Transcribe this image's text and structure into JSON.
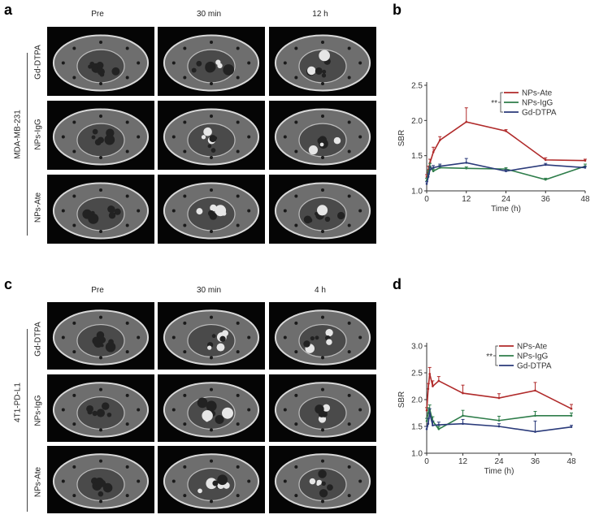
{
  "panels": {
    "a": {
      "letter": "a",
      "columns": [
        "Pre",
        "30 min",
        "12 h"
      ],
      "group": "MDA-MB-231",
      "rows": [
        "Gd-DTPA",
        "NPs-IgG",
        "NPs-Ate"
      ]
    },
    "c": {
      "letter": "c",
      "columns": [
        "Pre",
        "30 min",
        "4 h"
      ],
      "group": "4T1-PD-L1",
      "rows": [
        "Gd-DTPA",
        "NPs-IgG",
        "NPs-Ate"
      ]
    },
    "b": {
      "letter": "b"
    },
    "d": {
      "letter": "d"
    }
  },
  "chart_data": [
    {
      "type": "line",
      "panel": "b",
      "xlabel": "Time (h)",
      "ylabel": "SBR",
      "xlim": [
        0,
        48
      ],
      "ylim": [
        1.0,
        2.5
      ],
      "xticks": [
        0,
        12,
        24,
        36,
        48
      ],
      "yticks": [
        1.0,
        1.5,
        2.0,
        2.5
      ],
      "significance": "**",
      "legend_position": "top-right",
      "x": [
        0,
        0.5,
        1,
        2,
        4,
        12,
        24,
        36,
        48
      ],
      "series": [
        {
          "name": "NPs-Ate",
          "color": "#b02a2a",
          "values": [
            1.2,
            1.3,
            1.4,
            1.55,
            1.72,
            1.98,
            1.85,
            1.44,
            1.43
          ],
          "err": [
            0.03,
            0.05,
            0.05,
            0.07,
            0.05,
            0.2,
            0.02,
            0.03,
            0.02
          ]
        },
        {
          "name": "NPs-IgG",
          "color": "#2e7d4a",
          "values": [
            1.15,
            1.25,
            1.35,
            1.28,
            1.33,
            1.32,
            1.31,
            1.16,
            1.35
          ],
          "err": [
            0.03,
            0.04,
            0.04,
            0.03,
            0.03,
            0.02,
            0.02,
            0.02,
            0.03
          ]
        },
        {
          "name": "Gd-DTPA",
          "color": "#2a3a7a",
          "values": [
            1.1,
            1.2,
            1.3,
            1.33,
            1.35,
            1.4,
            1.28,
            1.37,
            1.33
          ],
          "err": [
            0.03,
            0.04,
            0.04,
            0.03,
            0.03,
            0.06,
            0.02,
            0.02,
            0.02
          ]
        }
      ]
    },
    {
      "type": "line",
      "panel": "d",
      "xlabel": "Time (h)",
      "ylabel": "SBR",
      "xlim": [
        0,
        48
      ],
      "ylim": [
        1.0,
        3.0
      ],
      "xticks": [
        0,
        12,
        24,
        36,
        48
      ],
      "yticks": [
        1.0,
        1.5,
        2.0,
        2.5,
        3.0
      ],
      "significance": "**",
      "legend_position": "top-right",
      "x": [
        0,
        0.5,
        1,
        2,
        4,
        12,
        24,
        36,
        48
      ],
      "series": [
        {
          "name": "NPs-Ate",
          "color": "#b02a2a",
          "values": [
            1.8,
            2.2,
            2.48,
            2.25,
            2.35,
            2.12,
            2.03,
            2.17,
            1.83
          ],
          "err": [
            0.05,
            0.1,
            0.12,
            0.1,
            0.08,
            0.15,
            0.08,
            0.15,
            0.08
          ]
        },
        {
          "name": "NPs-IgG",
          "color": "#2e7d4a",
          "values": [
            1.6,
            1.75,
            1.82,
            1.6,
            1.45,
            1.7,
            1.61,
            1.7,
            1.7
          ],
          "err": [
            0.05,
            0.1,
            0.08,
            0.08,
            0.05,
            0.1,
            0.08,
            0.08,
            0.05
          ]
        },
        {
          "name": "Gd-DTPA",
          "color": "#2a3a7a",
          "values": [
            1.45,
            1.55,
            1.75,
            1.52,
            1.53,
            1.55,
            1.5,
            1.4,
            1.49
          ],
          "err": [
            0.05,
            0.1,
            0.08,
            0.08,
            0.05,
            0.08,
            0.05,
            0.2,
            0.03
          ]
        }
      ]
    }
  ]
}
